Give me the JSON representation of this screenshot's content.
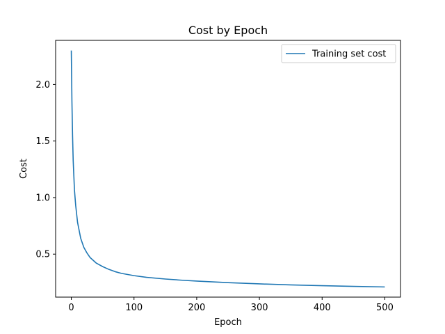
{
  "chart_data": {
    "type": "line",
    "title": "Cost by Epoch",
    "xlabel": "Epoch",
    "ylabel": "Cost",
    "xlim": [
      -25,
      525
    ],
    "ylim": [
      0.12,
      2.39
    ],
    "xticks": [
      0,
      100,
      200,
      300,
      400,
      500
    ],
    "yticks": [
      0.5,
      1.0,
      1.5,
      2.0
    ],
    "xtick_labels": [
      "0",
      "100",
      "200",
      "300",
      "400",
      "500"
    ],
    "ytick_labels": [
      "0.5",
      "1.0",
      "1.5",
      "2.0"
    ],
    "grid": false,
    "legend_position": "top-right",
    "color": "#1f77b4",
    "series": [
      {
        "name": "Training set cost",
        "x": [
          0,
          1,
          2,
          3,
          5,
          7,
          10,
          15,
          20,
          25,
          30,
          40,
          50,
          60,
          70,
          80,
          100,
          120,
          150,
          175,
          200,
          250,
          300,
          350,
          400,
          450,
          500
        ],
        "y": [
          2.3,
          1.85,
          1.55,
          1.33,
          1.07,
          0.93,
          0.78,
          0.64,
          0.56,
          0.51,
          0.47,
          0.42,
          0.39,
          0.365,
          0.345,
          0.33,
          0.31,
          0.295,
          0.28,
          0.27,
          0.262,
          0.248,
          0.237,
          0.228,
          0.221,
          0.215,
          0.21
        ]
      }
    ]
  }
}
